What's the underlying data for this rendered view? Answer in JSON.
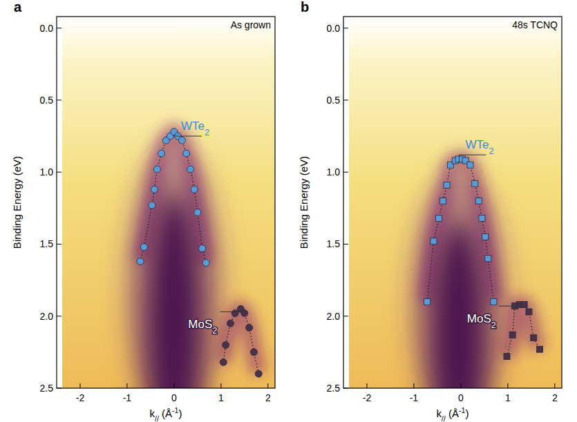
{
  "chart_data": [
    {
      "type": "scatter",
      "panel": "a",
      "title": "As grown",
      "x_label": "k// (Å-1)",
      "y_label": "Binding Energy (eV)",
      "xlim": [
        -2.5,
        2.15
      ],
      "ylim": [
        2.5,
        -0.08
      ],
      "xticks": [
        -2,
        -1,
        0,
        1,
        2
      ],
      "yticks": [
        {
          "value": 0,
          "label": "0.0"
        },
        0.5,
        {
          "value": 1,
          "label": "1.0"
        },
        1.5,
        {
          "value": 2,
          "label": "2.0"
        },
        2.5
      ],
      "series": [
        {
          "name": "WTe2",
          "color": "#5b9bd5",
          "marker": "circle",
          "line_style": "dotted",
          "vbm": 0.75,
          "x": [
            -0.72,
            -0.64,
            -0.47,
            -0.42,
            -0.36,
            -0.27,
            -0.17,
            -0.08,
            0.0,
            0.08,
            0.17,
            0.26,
            0.35,
            0.43,
            0.5,
            0.6,
            0.68
          ],
          "values": [
            1.62,
            1.52,
            1.23,
            1.12,
            0.98,
            0.87,
            0.78,
            0.75,
            0.72,
            0.75,
            0.78,
            0.87,
            0.98,
            1.12,
            1.28,
            1.53,
            1.63
          ]
        },
        {
          "name": "MoS2",
          "color": "#4a3048",
          "marker": "circle",
          "line_style": "dotted",
          "vbm": 1.97,
          "x": [
            1.05,
            1.1,
            1.2,
            1.3,
            1.42,
            1.5,
            1.6,
            1.7,
            1.8
          ],
          "values": [
            2.32,
            2.2,
            2.05,
            1.98,
            1.95,
            1.98,
            2.08,
            2.25,
            2.4
          ]
        }
      ]
    },
    {
      "type": "scatter",
      "panel": "b",
      "title": "48s TCNQ",
      "x_label": "k// (Å-1)",
      "y_label": "Binding Energy (eV)",
      "xlim": [
        -2.5,
        2.15
      ],
      "ylim": [
        2.5,
        -0.08
      ],
      "xticks": [
        -2,
        -1,
        0,
        1,
        2
      ],
      "yticks": [
        {
          "value": 0,
          "label": "0.0"
        },
        0.5,
        {
          "value": 1,
          "label": "1.0"
        },
        1.5,
        {
          "value": 2,
          "label": "2.0"
        },
        2.5
      ],
      "series": [
        {
          "name": "WTe2",
          "color": "#5b9bd5",
          "marker": "square",
          "line_style": "dotted",
          "vbm": 0.88,
          "x": [
            -0.72,
            -0.58,
            -0.47,
            -0.38,
            -0.3,
            -0.22,
            -0.12,
            -0.05,
            0.03,
            0.1,
            0.2,
            0.3,
            0.38,
            0.45,
            0.52,
            0.58,
            0.7
          ],
          "values": [
            1.9,
            1.48,
            1.32,
            1.2,
            1.09,
            0.95,
            0.92,
            0.91,
            0.91,
            0.92,
            0.95,
            1.08,
            1.2,
            1.32,
            1.45,
            1.6,
            1.9
          ]
        },
        {
          "name": "MoS2",
          "color": "#4a3048",
          "marker": "square",
          "line_style": "dotted",
          "vbm": 1.93,
          "x": [
            0.98,
            1.1,
            1.15,
            1.25,
            1.35,
            1.45,
            1.55,
            1.68
          ],
          "values": [
            2.28,
            2.13,
            1.93,
            1.92,
            1.92,
            1.97,
            2.15,
            2.23
          ]
        }
      ]
    }
  ]
}
